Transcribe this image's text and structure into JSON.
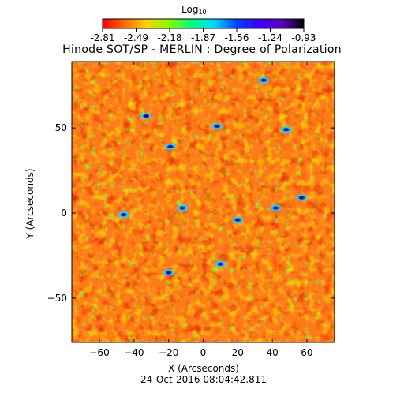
{
  "colorbar": {
    "title": "Log",
    "title_sub": "10",
    "tick_labels": [
      "-2.81",
      "-2.49",
      "-2.18",
      "-1.87",
      "-1.56",
      "-1.24",
      "-0.93"
    ],
    "colormap": [
      "#ff0000",
      "#ff6a00",
      "#ffd400",
      "#7fff00",
      "#00ff80",
      "#00d8ff",
      "#0040ff",
      "#3c00ff",
      "#6000c0",
      "#000000"
    ]
  },
  "chart_data": {
    "type": "heatmap",
    "title": "Hinode SOT/SP - MERLIN : Degree of Polarization",
    "xlabel": "X (Arcseconds)",
    "ylabel": "Y (Arcseconds)",
    "xlim": [
      -76,
      76
    ],
    "ylim": [
      -76,
      89
    ],
    "x_ticks": [
      -60,
      -40,
      -20,
      0,
      20,
      40,
      60
    ],
    "y_ticks": [
      -50,
      0,
      50
    ],
    "value_range": [
      -2.81,
      -0.93
    ],
    "background_color": "#ff7a1a",
    "high_polarization_patches": [
      {
        "x": -33,
        "y": 57
      },
      {
        "x": 8,
        "y": 51
      },
      {
        "x": 48,
        "y": 49
      },
      {
        "x": 35,
        "y": 78
      },
      {
        "x": -19,
        "y": 39
      },
      {
        "x": -46,
        "y": -1
      },
      {
        "x": -12,
        "y": 3
      },
      {
        "x": 57,
        "y": 9
      },
      {
        "x": 42,
        "y": 3
      },
      {
        "x": 20,
        "y": -4
      },
      {
        "x": 10,
        "y": -30
      },
      {
        "x": -20,
        "y": -35
      }
    ]
  },
  "footer": {
    "timestamp": "24-Oct-2016 08:04:42.811"
  }
}
